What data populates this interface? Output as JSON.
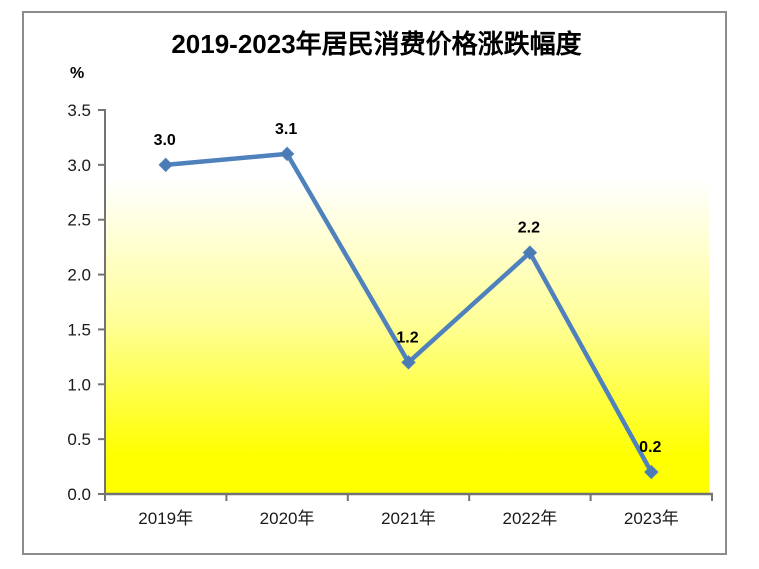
{
  "chart_data": {
    "type": "line",
    "title": "2019-2023年居民消费价格涨跌幅度",
    "unit_label": "%",
    "categories": [
      "2019年",
      "2020年",
      "2021年",
      "2022年",
      "2023年"
    ],
    "series": [
      {
        "values": [
          3.0,
          3.1,
          1.2,
          2.2,
          0.2
        ]
      }
    ],
    "data_labels": [
      "3.0",
      "3.1",
      "1.2",
      "2.2",
      "0.2"
    ],
    "y_ticks": [
      "3.5",
      "3.0",
      "2.5",
      "2.0",
      "1.5",
      "1.0",
      "0.5",
      "0.0"
    ],
    "ylim": [
      0,
      3.5
    ],
    "y_step": 0.5,
    "grid": false,
    "legend": "none",
    "colors": {
      "series_line": "#4F81BD",
      "marker_fill": "#4A7BB5",
      "plot_gradient_top": "#FFFFFF",
      "plot_gradient_mid": "#FFFF99",
      "plot_gradient_bottom": "#FFFF00",
      "axis_line": "#737373",
      "tick_label": "#1a1a1a",
      "data_label": "#000000",
      "frame_border": "#8c8c8c"
    }
  }
}
